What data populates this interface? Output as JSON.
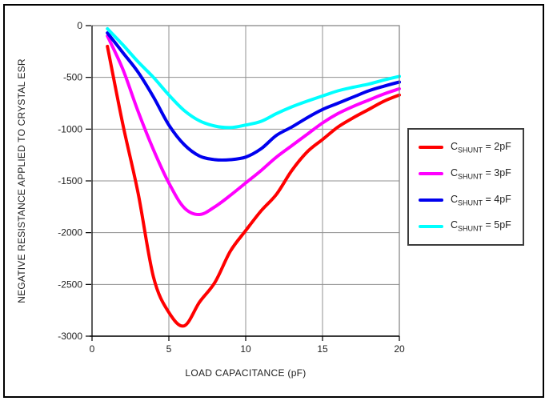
{
  "window": {
    "background": "#ffffff",
    "border_color": "#000000"
  },
  "colors": {
    "grid": "#909090",
    "plot_border": "#808080",
    "axis": "#000000",
    "text": "#1f1f1f",
    "legend_border": "#3c3c3c",
    "background": "#ffffff"
  },
  "chart_data": {
    "type": "line",
    "title": "",
    "xlabel": "LOAD CAPACITANCE (pF)",
    "ylabel": "NEGATIVE RESISTANCE APPLIED TO CRYSTAL ESR",
    "xlim": [
      0,
      20
    ],
    "ylim": [
      -3000,
      0
    ],
    "x_ticks": [
      0,
      5,
      10,
      15,
      20
    ],
    "y_ticks": [
      0,
      -500,
      -1000,
      -1500,
      -2000,
      -2500,
      -3000
    ],
    "grid": true,
    "legend_position": "outside-right",
    "x": [
      1,
      2,
      3,
      4,
      5,
      6,
      7,
      8,
      9,
      10,
      11,
      12,
      13,
      14,
      15,
      16,
      17,
      18,
      19,
      20
    ],
    "series": [
      {
        "name": "CSHUNT = 2pF",
        "label": {
          "prefix": "C",
          "sub": "SHUNT",
          "suffix": " = 2pF"
        },
        "color": "#ff0000",
        "values": [
          -200,
          -950,
          -1620,
          -2430,
          -2770,
          -2900,
          -2670,
          -2480,
          -2180,
          -1980,
          -1790,
          -1630,
          -1400,
          -1220,
          -1100,
          -980,
          -890,
          -810,
          -730,
          -670
        ]
      },
      {
        "name": "CSHUNT = 3pF",
        "label": {
          "prefix": "C",
          "sub": "SHUNT",
          "suffix": " = 3pF"
        },
        "color": "#ff00ff",
        "values": [
          -100,
          -420,
          -830,
          -1200,
          -1520,
          -1760,
          -1825,
          -1750,
          -1640,
          -1520,
          -1400,
          -1270,
          -1160,
          -1050,
          -940,
          -850,
          -780,
          -720,
          -660,
          -610
        ]
      },
      {
        "name": "CSHUNT = 4pF",
        "label": {
          "prefix": "C",
          "sub": "SHUNT",
          "suffix": " = 4pF"
        },
        "color": "#0000ee",
        "values": [
          -70,
          -260,
          -450,
          -690,
          -960,
          -1150,
          -1260,
          -1295,
          -1295,
          -1270,
          -1190,
          -1060,
          -980,
          -890,
          -810,
          -750,
          -690,
          -630,
          -585,
          -545
        ]
      },
      {
        "name": "CSHUNT = 5pF",
        "label": {
          "prefix": "C",
          "sub": "SHUNT",
          "suffix": " = 5pF"
        },
        "color": "#00ffff",
        "values": [
          -30,
          -185,
          -350,
          -500,
          -670,
          -820,
          -920,
          -970,
          -985,
          -960,
          -925,
          -850,
          -785,
          -730,
          -680,
          -630,
          -595,
          -565,
          -525,
          -490
        ]
      }
    ]
  }
}
